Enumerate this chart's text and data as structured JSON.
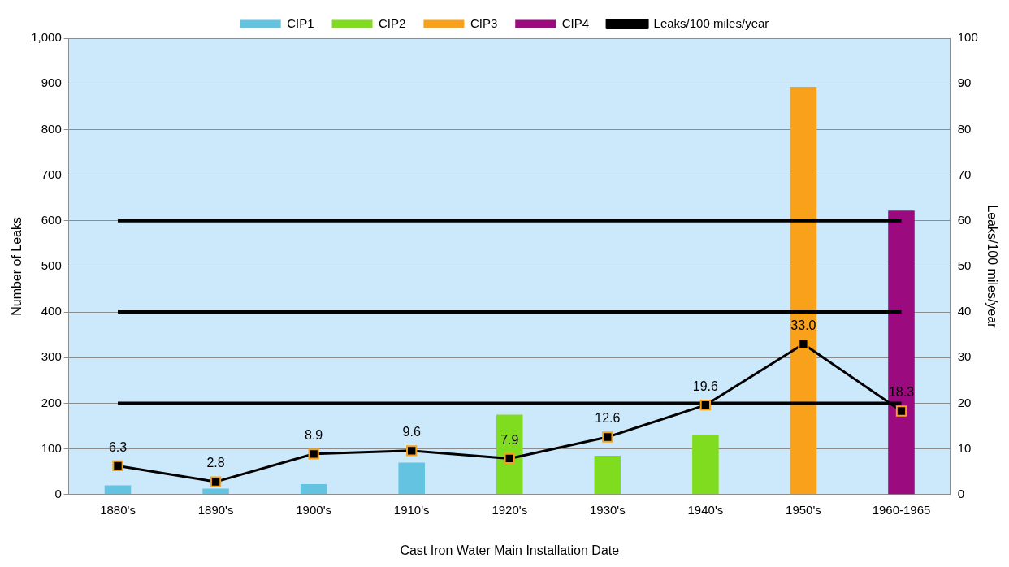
{
  "chart_data": {
    "type": "bar",
    "xlabel": "Cast Iron Water Main Installation Date",
    "ylabel": "Number of Leaks",
    "y2label": "Leaks/100 miles/year",
    "categories": [
      "1880's",
      "1890's",
      "1900's",
      "1910's",
      "1920's",
      "1930's",
      "1940's",
      "1950's",
      "1960-1965"
    ],
    "series": [
      {
        "name": "CIP1",
        "color": "#63c3e0",
        "values": [
          20,
          13,
          23,
          70,
          null,
          null,
          null,
          null,
          null
        ]
      },
      {
        "name": "CIP2",
        "color": "#80dc1e",
        "values": [
          null,
          null,
          null,
          null,
          175,
          85,
          130,
          null,
          null
        ]
      },
      {
        "name": "CIP3",
        "color": "#f9a11b",
        "values": [
          null,
          null,
          null,
          null,
          null,
          null,
          null,
          893,
          null
        ]
      },
      {
        "name": "CIP4",
        "color": "#9b0a7f",
        "values": [
          null,
          null,
          null,
          null,
          null,
          null,
          null,
          null,
          622
        ]
      },
      {
        "name": "Leaks/100 miles/year",
        "type": "line",
        "axis": "y2",
        "color": "#000000",
        "marker": "square",
        "values": [
          6.3,
          2.8,
          8.9,
          9.6,
          7.9,
          12.6,
          19.6,
          33.0,
          18.3
        ],
        "value_labels": [
          "6.3",
          "2.8",
          "8.9",
          "9.6",
          "7.9",
          "12.6",
          "19.6",
          "33.0",
          "18.3"
        ]
      },
      {
        "type": "line",
        "color": "#000000",
        "marker": "none",
        "values": [
          200,
          200,
          200,
          200,
          200,
          200,
          200,
          200,
          200
        ]
      },
      {
        "type": "line",
        "color": "#000000",
        "marker": "none",
        "values": [
          400,
          400,
          400,
          400,
          400,
          400,
          400,
          400,
          400
        ]
      },
      {
        "type": "line",
        "color": "#000000",
        "marker": "none",
        "values": [
          600,
          600,
          600,
          600,
          600,
          600,
          600,
          600,
          600
        ]
      }
    ],
    "ylim": [
      0,
      1000
    ],
    "yticks": [
      0,
      100,
      200,
      300,
      400,
      500,
      600,
      700,
      800,
      900,
      {
        "value": 1000,
        "label": "1,000"
      }
    ],
    "y2lim": [
      0,
      100
    ],
    "y2ticks": [
      0,
      10,
      20,
      30,
      40,
      50,
      60,
      70,
      80,
      90,
      100
    ],
    "grid": "y",
    "legend": "top"
  }
}
